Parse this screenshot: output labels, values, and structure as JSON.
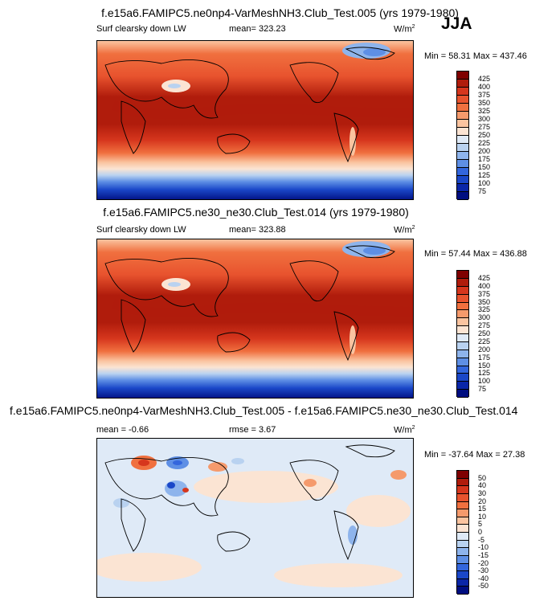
{
  "season": "JJA",
  "panels": [
    {
      "title": "f.e15a6.FAMIPC5.ne0np4-VarMeshNH3.Club_Test.005 (yrs 1979-1980)",
      "variable": "Surf clearsky down LW",
      "mean": "mean= 323.23",
      "units": "W/m",
      "units_sup": "2",
      "minmax": "Min =  58.31 Max = 437.46",
      "kind": "abs"
    },
    {
      "title": "f.e15a6.FAMIPC5.ne30_ne30.Club_Test.014 (yrs 1979-1980)",
      "variable": "Surf clearsky down LW",
      "mean": "mean= 323.88",
      "units": "W/m",
      "units_sup": "2",
      "minmax": "Min =  57.44 Max = 436.88",
      "kind": "abs"
    },
    {
      "title": "f.e15a6.FAMIPC5.ne0np4-VarMeshNH3.Club_Test.005 - f.e15a6.FAMIPC5.ne30_ne30.Club_Test.014",
      "mean": "mean =  -0.66",
      "rmse": "rmse =    3.67",
      "units": "W/m",
      "units_sup": "2",
      "minmax": "Min = -37.64 Max =  27.38",
      "kind": "diff"
    }
  ],
  "colorbar_abs": {
    "levels": [
      "425",
      "400",
      "375",
      "350",
      "325",
      "300",
      "275",
      "250",
      "225",
      "200",
      "175",
      "150",
      "125",
      "100",
      "75"
    ],
    "colors": [
      "#7f0000",
      "#b01c0c",
      "#d6361d",
      "#e8532e",
      "#f0703f",
      "#f59a6c",
      "#fac4a0",
      "#fbe4d3",
      "#dfeaf7",
      "#b9d2f0",
      "#8eb4ec",
      "#5e8fe5",
      "#3366dd",
      "#1a47c8",
      "#0a26a8",
      "#000e80"
    ]
  },
  "colorbar_diff": {
    "levels": [
      "50",
      "40",
      "30",
      "20",
      "15",
      "10",
      "5",
      "0",
      "-5",
      "-10",
      "-15",
      "-20",
      "-30",
      "-40",
      "-50"
    ],
    "colors": [
      "#7f0000",
      "#b01c0c",
      "#d6361d",
      "#e8532e",
      "#f0703f",
      "#f59a6c",
      "#fac4a0",
      "#fbe4d3",
      "#dfeaf7",
      "#b9d2f0",
      "#8eb4ec",
      "#5e8fe5",
      "#3366dd",
      "#1a47c8",
      "#0a26a8",
      "#000e80"
    ]
  },
  "chart_data": [
    {
      "type": "heatmap",
      "title": "f.e15a6.FAMIPC5.ne0np4-VarMeshNH3.Club_Test.005 (yrs 1979-1980)",
      "variable": "Surf clearsky down LW",
      "season": "JJA",
      "mean": 323.23,
      "min": 58.31,
      "max": 437.46,
      "units": "W/m2",
      "contour_levels": [
        75,
        100,
        125,
        150,
        175,
        200,
        225,
        250,
        275,
        300,
        325,
        350,
        375,
        400,
        425
      ]
    },
    {
      "type": "heatmap",
      "title": "f.e15a6.FAMIPC5.ne30_ne30.Club_Test.014 (yrs 1979-1980)",
      "variable": "Surf clearsky down LW",
      "season": "JJA",
      "mean": 323.88,
      "min": 57.44,
      "max": 436.88,
      "units": "W/m2",
      "contour_levels": [
        75,
        100,
        125,
        150,
        175,
        200,
        225,
        250,
        275,
        300,
        325,
        350,
        375,
        400,
        425
      ]
    },
    {
      "type": "heatmap",
      "title": "f.e15a6.FAMIPC5.ne0np4-VarMeshNH3.Club_Test.005 - f.e15a6.FAMIPC5.ne30_ne30.Club_Test.014",
      "mean": -0.66,
      "rmse": 3.67,
      "min": -37.64,
      "max": 27.38,
      "units": "W/m2",
      "contour_levels": [
        -50,
        -40,
        -30,
        -20,
        -15,
        -10,
        -5,
        0,
        5,
        10,
        15,
        20,
        30,
        40,
        50
      ]
    }
  ]
}
